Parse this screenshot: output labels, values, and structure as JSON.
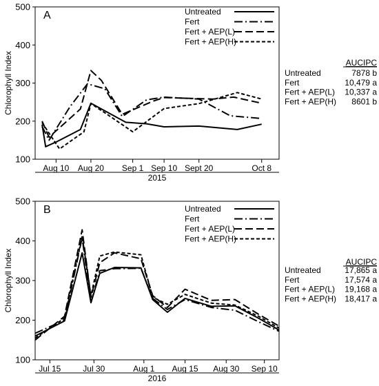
{
  "chart_data": [
    {
      "type": "line",
      "panel_label": "A",
      "ylabel": "Chlorophyll Index",
      "xlabel": "2015",
      "ylim": [
        100,
        500
      ],
      "yticks": [
        100,
        200,
        300,
        400,
        500
      ],
      "x_tick_labels": [
        "Aug 10",
        "Aug 20",
        "Sep 1",
        "Sep 10",
        "Sept 20",
        "Oct 8"
      ],
      "x_tick_days": [
        10,
        20,
        32,
        41,
        51,
        69
      ],
      "x_range_days": [
        4,
        74
      ],
      "legend_position": "top-right",
      "table_header": "AUCIPC",
      "series": [
        {
          "name": "Untreated",
          "style": "solid",
          "auc": "7878 b",
          "points": [
            [
              6,
              191
            ],
            [
              7,
              133
            ],
            [
              10,
              145
            ],
            [
              17,
              178
            ],
            [
              20,
              247
            ],
            [
              30,
              197
            ],
            [
              36,
              193
            ],
            [
              41,
              185
            ],
            [
              51,
              187
            ],
            [
              62,
              178
            ],
            [
              69,
              192
            ]
          ]
        },
        {
          "name": "Fert",
          "style": "dashdot",
          "auc": "10,479 a",
          "points": [
            [
              6,
              186
            ],
            [
              8,
              150
            ],
            [
              14,
              238
            ],
            [
              19,
              298
            ],
            [
              24,
              285
            ],
            [
              29,
              212
            ],
            [
              36,
              256
            ],
            [
              41,
              263
            ],
            [
              51,
              258
            ],
            [
              60,
              214
            ],
            [
              69,
              207
            ]
          ]
        },
        {
          "name": "Fert + AEP(L)",
          "style": "longdash",
          "auc": "10,337 a",
          "points": [
            [
              6,
              200
            ],
            [
              8,
              158
            ],
            [
              17,
              232
            ],
            [
              20,
              333
            ],
            [
              23,
              307
            ],
            [
              29,
              218
            ],
            [
              38,
              253
            ],
            [
              41,
              262
            ],
            [
              55,
              258
            ],
            [
              61,
              263
            ],
            [
              69,
              247
            ]
          ]
        },
        {
          "name": "Fert + AEP(H)",
          "style": "shortdash",
          "auc": "8601 b",
          "points": [
            [
              6,
              196
            ],
            [
              11,
              127
            ],
            [
              18,
              172
            ],
            [
              20,
              246
            ],
            [
              24,
              222
            ],
            [
              32,
              172
            ],
            [
              41,
              233
            ],
            [
              51,
              246
            ],
            [
              62,
              275
            ],
            [
              69,
              258
            ]
          ]
        }
      ]
    },
    {
      "type": "line",
      "panel_label": "B",
      "ylabel": "Chlorophyll Index",
      "xlabel": "2016",
      "ylim": [
        100,
        500
      ],
      "yticks": [
        100,
        200,
        300,
        400,
        500
      ],
      "x_tick_labels": [
        "Jul 15",
        "Jul 30",
        "Aug 1",
        "Aug 15",
        "Aug 30",
        "Sep 10"
      ],
      "x_tick_days": [
        15,
        30,
        47,
        61,
        75,
        88
      ],
      "x_range_days": [
        10,
        93
      ],
      "legend_position": "top-right",
      "table_header": "AUCIPC",
      "series": [
        {
          "name": "Untreated",
          "style": "solid",
          "auc": "17,865 a",
          "points": [
            [
              10,
              160
            ],
            [
              20,
              198
            ],
            [
              26,
              370
            ],
            [
              29,
              244
            ],
            [
              32,
              318
            ],
            [
              37,
              333
            ],
            [
              46,
              332
            ],
            [
              50,
              252
            ],
            [
              55,
              220
            ],
            [
              61,
              255
            ],
            [
              70,
              235
            ],
            [
              78,
              236
            ],
            [
              86,
              205
            ],
            [
              93,
              175
            ]
          ]
        },
        {
          "name": "Fert",
          "style": "dashdot",
          "auc": "17,574 a",
          "points": [
            [
              10,
              167
            ],
            [
              20,
              200
            ],
            [
              26,
              408
            ],
            [
              29,
              245
            ],
            [
              32,
              325
            ],
            [
              37,
              330
            ],
            [
              46,
              331
            ],
            [
              50,
              255
            ],
            [
              55,
              227
            ],
            [
              61,
              252
            ],
            [
              70,
              232
            ],
            [
              78,
              225
            ],
            [
              86,
              196
            ],
            [
              93,
              172
            ]
          ]
        },
        {
          "name": "Fert + AEP(L)",
          "style": "longdash",
          "auc": "19,168 a",
          "points": [
            [
              10,
              150
            ],
            [
              20,
              210
            ],
            [
              26,
              428
            ],
            [
              29,
              258
            ],
            [
              32,
              345
            ],
            [
              37,
              370
            ],
            [
              46,
              355
            ],
            [
              50,
              262
            ],
            [
              55,
              232
            ],
            [
              61,
              278
            ],
            [
              70,
              250
            ],
            [
              78,
              252
            ],
            [
              86,
              215
            ],
            [
              93,
              185
            ]
          ]
        },
        {
          "name": "Fert + AEP(H)",
          "style": "shortdash",
          "auc": "18,417 a",
          "points": [
            [
              10,
              155
            ],
            [
              20,
              205
            ],
            [
              26,
              412
            ],
            [
              29,
              262
            ],
            [
              32,
              362
            ],
            [
              37,
              372
            ],
            [
              46,
              365
            ],
            [
              50,
              258
            ],
            [
              55,
              240
            ],
            [
              61,
              265
            ],
            [
              70,
              243
            ],
            [
              78,
              238
            ],
            [
              86,
              210
            ],
            [
              93,
              180
            ]
          ]
        }
      ]
    }
  ]
}
